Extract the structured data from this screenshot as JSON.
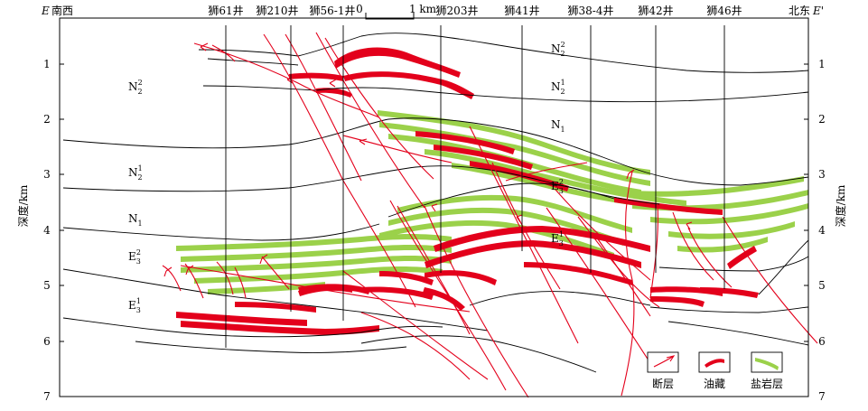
{
  "profile": {
    "left_label_letter": "E",
    "left_label_dir": "南西",
    "right_label_dir": "北东",
    "right_label_letter": "E'"
  },
  "wells": [
    "狮61井",
    "狮210井",
    "狮56-1井",
    "狮203井",
    "狮41井",
    "狮38-4井",
    "狮42井",
    "狮46井"
  ],
  "scale_bar": {
    "start": "0",
    "end": "1 km"
  },
  "depth_axis": {
    "label": "深度/km",
    "ticks": [
      "1",
      "2",
      "3",
      "4",
      "5",
      "6",
      "7"
    ]
  },
  "formations": {
    "n2_2": {
      "base": "N",
      "sub": "2",
      "sup": "2"
    },
    "n2_1": {
      "base": "N",
      "sub": "2",
      "sup": "1"
    },
    "n1": {
      "base": "N",
      "sub": "1",
      "sup": ""
    },
    "e3_2": {
      "base": "E",
      "sub": "3",
      "sup": "2"
    },
    "e3_1": {
      "base": "E",
      "sub": "3",
      "sup": "1"
    }
  },
  "legend": {
    "fault": "断层",
    "oil": "油藏",
    "salt": "盐岩层"
  },
  "colors": {
    "fault": "#e3001b",
    "oil": "#e3001b",
    "salt": "#9bd14a"
  }
}
